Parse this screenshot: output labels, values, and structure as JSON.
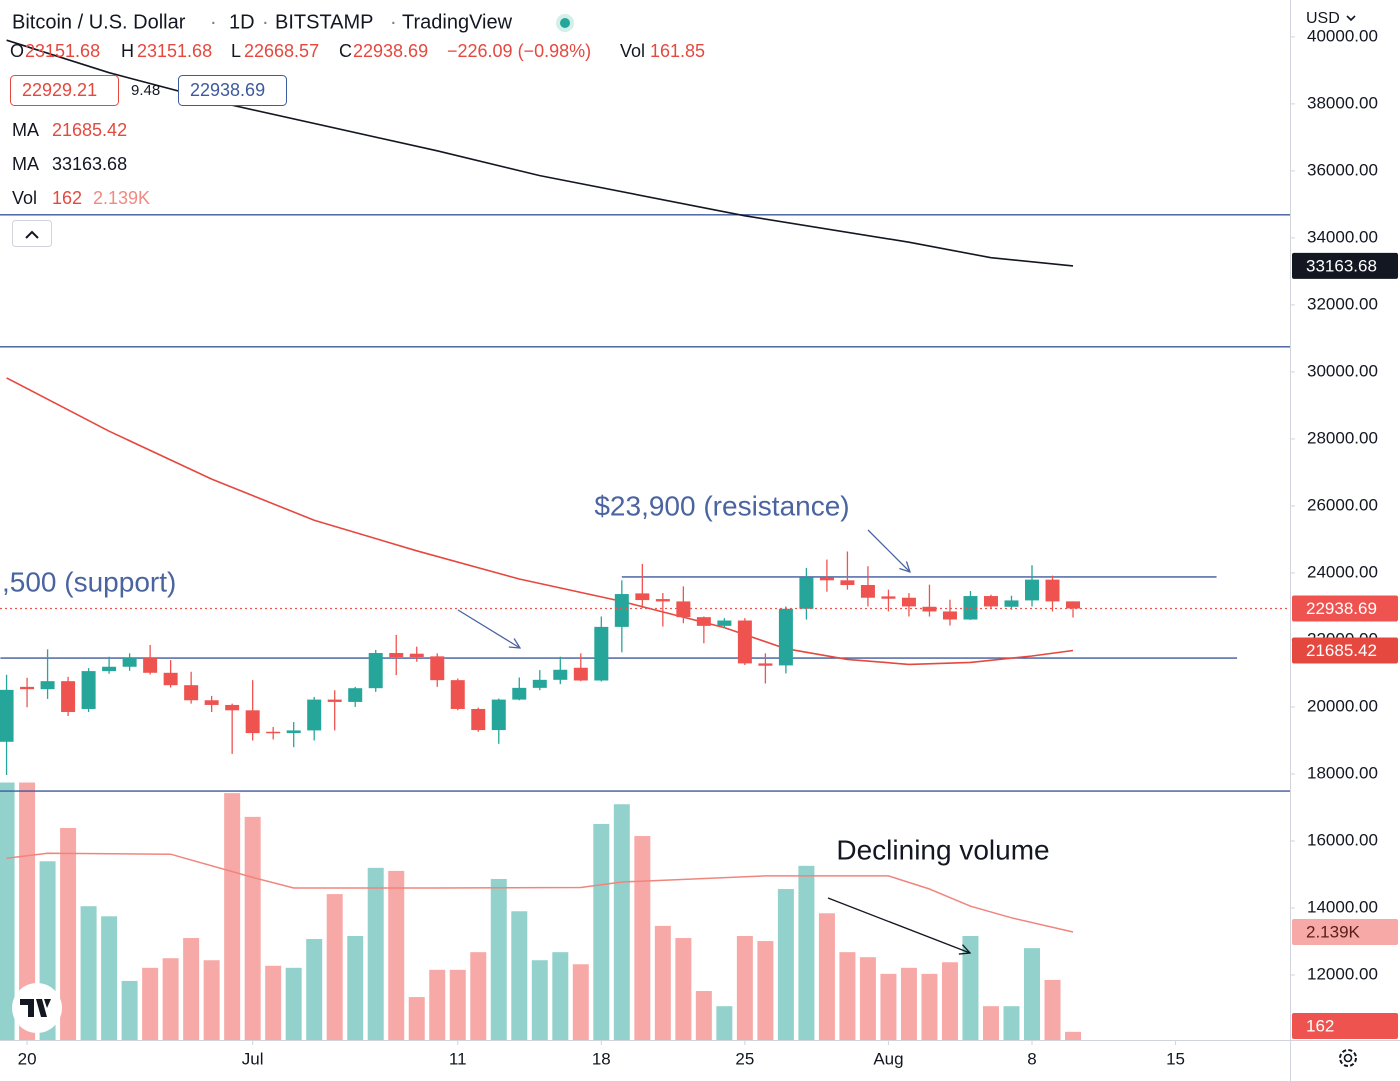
{
  "chart_data": {
    "type": "candlestick",
    "title": "Bitcoin / U.S. Dollar",
    "interval": "1D",
    "exchange": "BITSTAMP",
    "source": "TradingView",
    "separator": "·",
    "currency": "USD",
    "legend": {
      "open_label": "O",
      "high_label": "H",
      "low_label": "L",
      "close_label": "C",
      "change": "−226.09 (−0.98%)",
      "sell": "22929.21",
      "spread": "9.48"
    },
    "x": [
      -1,
      0,
      1,
      2,
      3,
      4,
      5,
      6,
      7,
      8,
      9,
      10,
      11,
      12,
      13,
      14,
      15,
      16,
      17,
      18,
      19,
      20,
      21,
      22,
      23,
      24,
      25,
      26,
      27,
      28,
      29,
      30,
      31,
      32,
      33,
      34,
      35,
      36,
      37,
      38,
      39,
      40,
      41,
      42,
      43,
      44,
      45,
      46,
      47,
      48,
      49,
      50,
      51
    ],
    "open": [
      18960,
      20600,
      20530,
      20770,
      19940,
      21070,
      21200,
      21460,
      21020,
      20650,
      20200,
      20060,
      19900,
      19260,
      19220,
      19300,
      20220,
      20150,
      20560,
      21610,
      21590,
      21510,
      20800,
      19940,
      19310,
      20220,
      20570,
      20810,
      21170,
      20790,
      22390,
      23390,
      23220,
      23150,
      22680,
      22420,
      22580,
      21300,
      21240,
      22930,
      23860,
      23780,
      23640,
      23300,
      23260,
      22990,
      22850,
      22610,
      23310,
      22990,
      23180,
      23800,
      23151.68
    ],
    "high": [
      20960,
      20870,
      21720,
      20900,
      21160,
      21500,
      21600,
      21850,
      21400,
      21050,
      20330,
      20100,
      20800,
      19400,
      19550,
      20300,
      20500,
      20600,
      21700,
      22150,
      21800,
      21600,
      20850,
      19980,
      20250,
      20880,
      21100,
      21500,
      21600,
      22700,
      23780,
      24270,
      23400,
      23600,
      22700,
      22650,
      22650,
      21600,
      23000,
      24150,
      24400,
      24640,
      24200,
      23500,
      23400,
      23650,
      23200,
      23460,
      23350,
      23320,
      24230,
      23920,
      23151.68
    ],
    "low": [
      17970,
      19990,
      20240,
      19730,
      19850,
      20990,
      21080,
      20970,
      20580,
      20100,
      19850,
      18600,
      19000,
      19030,
      18800,
      19000,
      19300,
      20000,
      20450,
      20950,
      21350,
      20600,
      19900,
      19260,
      18900,
      20200,
      20500,
      20680,
      20770,
      20760,
      21630,
      22950,
      22400,
      22500,
      21900,
      22350,
      21250,
      20700,
      21000,
      22610,
      23440,
      23500,
      23000,
      22850,
      22700,
      22700,
      22430,
      22600,
      22950,
      22900,
      23000,
      22850,
      22668.57
    ],
    "close": [
      20510,
      20530,
      20770,
      19850,
      21070,
      21200,
      21460,
      21020,
      20650,
      20200,
      20060,
      19900,
      19220,
      19220,
      19300,
      20220,
      20150,
      20560,
      21610,
      21490,
      21490,
      20800,
      19940,
      19310,
      20220,
      20570,
      20810,
      21110,
      20790,
      22390,
      23370,
      23190,
      23150,
      22680,
      22420,
      22580,
      21300,
      21230,
      22930,
      23860,
      23780,
      23640,
      23260,
      23230,
      23000,
      22850,
      22610,
      23310,
      23000,
      23180,
      23800,
      23150,
      22938.69
    ],
    "up_color": "#26a69a",
    "down_color": "#ef5350",
    "volume": {
      "name": "Vol",
      "values": [
        5100,
        5100,
        3540,
        4200,
        2650,
        2450,
        1170,
        1430,
        1620,
        2020,
        1580,
        4890,
        4420,
        1470,
        1430,
        2000,
        2890,
        2060,
        3410,
        3350,
        850,
        1390,
        1390,
        1740,
        3190,
        2550,
        1580,
        1740,
        1500,
        4280,
        4670,
        4040,
        2260,
        2020,
        970,
        670,
        2060,
        1960,
        2990,
        3450,
        2510,
        1740,
        1640,
        1310,
        1430,
        1310,
        1540,
        2060,
        670,
        670,
        1820,
        1190,
        161.85
      ],
      "last_label": "162",
      "up_color": "#93d2cc",
      "down_color": "#f7a9a7",
      "ma": {
        "color": "#f0857d",
        "x": [
          -1,
          1,
          7,
          11,
          13,
          20,
          27,
          29,
          36,
          42,
          44,
          46,
          48,
          51
        ],
        "values": [
          3600,
          3700,
          3680,
          3220,
          3010,
          3010,
          3020,
          3130,
          3250,
          3250,
          2990,
          2650,
          2420,
          2139
        ],
        "last_label": "2.139K"
      }
    },
    "series": [
      {
        "name": "MA",
        "color": "#e5483f",
        "x": [
          -1,
          4,
          9,
          14,
          19,
          24,
          29,
          34,
          37,
          40,
          43,
          46,
          49,
          51
        ],
        "values": [
          29820,
          28230,
          26800,
          25570,
          24660,
          23820,
          23150,
          22370,
          21740,
          21420,
          21270,
          21330,
          21520,
          21685.42
        ]
      },
      {
        "name": "MA",
        "color": "#131722",
        "x": [
          -1,
          4,
          10,
          20,
          25,
          35,
          43,
          47,
          51
        ],
        "values": [
          39900,
          38930,
          37960,
          36600,
          35860,
          34660,
          33870,
          33410,
          33163.68
        ]
      }
    ],
    "hlines": [
      {
        "value": 34690
      },
      {
        "value": 30750
      },
      {
        "value": 23880,
        "x": [
          29,
          58
        ]
      },
      {
        "value": 21460,
        "x": [
          -1.3,
          59
        ]
      },
      {
        "value": 17490
      }
    ],
    "hline_color": "#3d5a9e",
    "annotations": [
      {
        "text": "$23,900 (resistance)",
        "color": "#4a64a0"
      },
      {
        "text": ",500 (support)",
        "color": "#4a64a0"
      },
      {
        "text": "Declining volume",
        "color": "#131722"
      }
    ],
    "xlim": [
      -1.32,
      61.58
    ],
    "xticks": [
      {
        "value": 0,
        "label": "20"
      },
      {
        "value": 11,
        "label": "Jul"
      },
      {
        "value": 21,
        "label": "11"
      },
      {
        "value": 28,
        "label": "18"
      },
      {
        "value": 35,
        "label": "25"
      },
      {
        "value": 42,
        "label": "Aug"
      },
      {
        "value": 49,
        "label": "8"
      },
      {
        "value": 56,
        "label": "15"
      }
    ],
    "ylim": [
      10060,
      41100
    ],
    "yticks": [
      {
        "value": 12000,
        "label": "12000.00"
      },
      {
        "value": 14000,
        "label": "14000.00"
      },
      {
        "value": 16000,
        "label": "16000.00"
      },
      {
        "value": 18000,
        "label": "18000.00"
      },
      {
        "value": 20000,
        "label": "20000.00"
      },
      {
        "value": 22000,
        "label": "22000.00"
      },
      {
        "value": 24000,
        "label": "24000.00"
      },
      {
        "value": 26000,
        "label": "26000.00"
      },
      {
        "value": 28000,
        "label": "28000.00"
      },
      {
        "value": 30000,
        "label": "30000.00"
      },
      {
        "value": 32000,
        "label": "32000.00"
      },
      {
        "value": 34000,
        "label": "34000.00"
      },
      {
        "value": 36000,
        "label": "36000.00"
      },
      {
        "value": 38000,
        "label": "38000.00"
      },
      {
        "value": 40000,
        "label": "40000.00"
      }
    ],
    "y2lim": [
      0,
      20600
    ],
    "grid": false
  }
}
